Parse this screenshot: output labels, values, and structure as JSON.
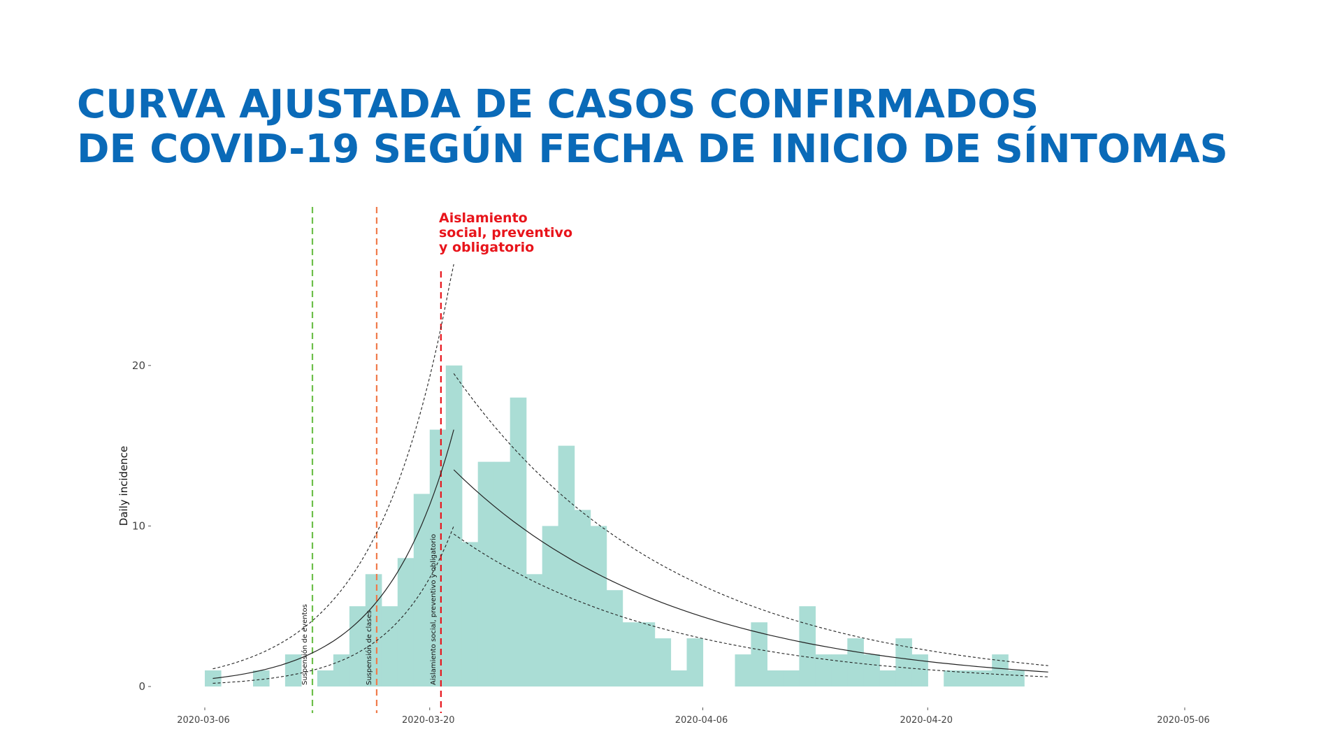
{
  "page": {
    "title_lines": [
      "CURVA AJUSTADA DE CASOS CONFIRMADOS",
      "DE COVID-19 SEGÚN FECHA DE INICIO DE SÍNTOMAS"
    ],
    "callout_lines": [
      "Aislamiento",
      "social, preventivo",
      "y obligatorio"
    ]
  },
  "colors": {
    "title": "#0a6ab8",
    "bars": "#aaddd5",
    "fit_line": "#222222",
    "callout": "#e8141b",
    "event_1": "#6dbf4b",
    "event_2": "#f07a4a",
    "event_3": "#e8141b"
  },
  "chart_data": {
    "type": "bar",
    "ylabel": "Daily incidence",
    "xlabel": "",
    "ylim": [
      0,
      25
    ],
    "yticks": [
      0,
      10,
      20
    ],
    "xlim": [
      "2020-03-06",
      "2020-05-06"
    ],
    "xticks": [
      "2020-03-06",
      "2020-03-20",
      "2020-04-06",
      "2020-04-20",
      "2020-05-06"
    ],
    "grid": false,
    "series": [
      {
        "dates": [
          "2020-03-06",
          "2020-03-07",
          "2020-03-08",
          "2020-03-09",
          "2020-03-10",
          "2020-03-11",
          "2020-03-12",
          "2020-03-13",
          "2020-03-14",
          "2020-03-15",
          "2020-03-16",
          "2020-03-17",
          "2020-03-18",
          "2020-03-19",
          "2020-03-20",
          "2020-03-21",
          "2020-03-22",
          "2020-03-23",
          "2020-03-24",
          "2020-03-25",
          "2020-03-26",
          "2020-03-27",
          "2020-03-28",
          "2020-03-29",
          "2020-03-30",
          "2020-03-31",
          "2020-04-01",
          "2020-04-02",
          "2020-04-03",
          "2020-04-04",
          "2020-04-05",
          "2020-04-06",
          "2020-04-07",
          "2020-04-08",
          "2020-04-09",
          "2020-04-10",
          "2020-04-11",
          "2020-04-12",
          "2020-04-13",
          "2020-04-14",
          "2020-04-15",
          "2020-04-16",
          "2020-04-17",
          "2020-04-18",
          "2020-04-19",
          "2020-04-20",
          "2020-04-21",
          "2020-04-22",
          "2020-04-23",
          "2020-04-24",
          "2020-04-25",
          "2020-04-26",
          "2020-04-27",
          "2020-04-28",
          "2020-04-29",
          "2020-04-30"
        ],
        "values": [
          1,
          0,
          0,
          1,
          0,
          2,
          0,
          1,
          2,
          5,
          7,
          5,
          8,
          12,
          16,
          20,
          9,
          14,
          14,
          18,
          7,
          10,
          15,
          11,
          10,
          6,
          4,
          4,
          3,
          1,
          3,
          0,
          0,
          2,
          4,
          1,
          1,
          5,
          2,
          2,
          3,
          2,
          1,
          3,
          2,
          0,
          1,
          1,
          1,
          2,
          1,
          0,
          0,
          0,
          0,
          0
        ]
      }
    ],
    "fit": {
      "growth": {
        "start": "2020-03-06",
        "end": "2020-03-21",
        "center": [
          0.5,
          16.0
        ],
        "lower": [
          0.2,
          10.0
        ],
        "upper": [
          1.1,
          26.5
        ]
      },
      "decay": {
        "start": "2020-03-21",
        "end": "2020-04-27",
        "center": [
          13.5,
          0.9
        ],
        "lower": [
          9.5,
          0.6
        ],
        "upper": [
          19.5,
          1.3
        ]
      }
    },
    "annotations": [
      {
        "date": "2020-03-12.7",
        "label": "Suspensión de eventos",
        "color_key": "event_1"
      },
      {
        "date": "2020-03-16.7",
        "label": "Suspensión de clases",
        "color_key": "event_2"
      },
      {
        "date": "2020-03-20.7",
        "label": "Aislamiento social, preventivo y obligatorio",
        "color_key": "event_3"
      }
    ]
  }
}
